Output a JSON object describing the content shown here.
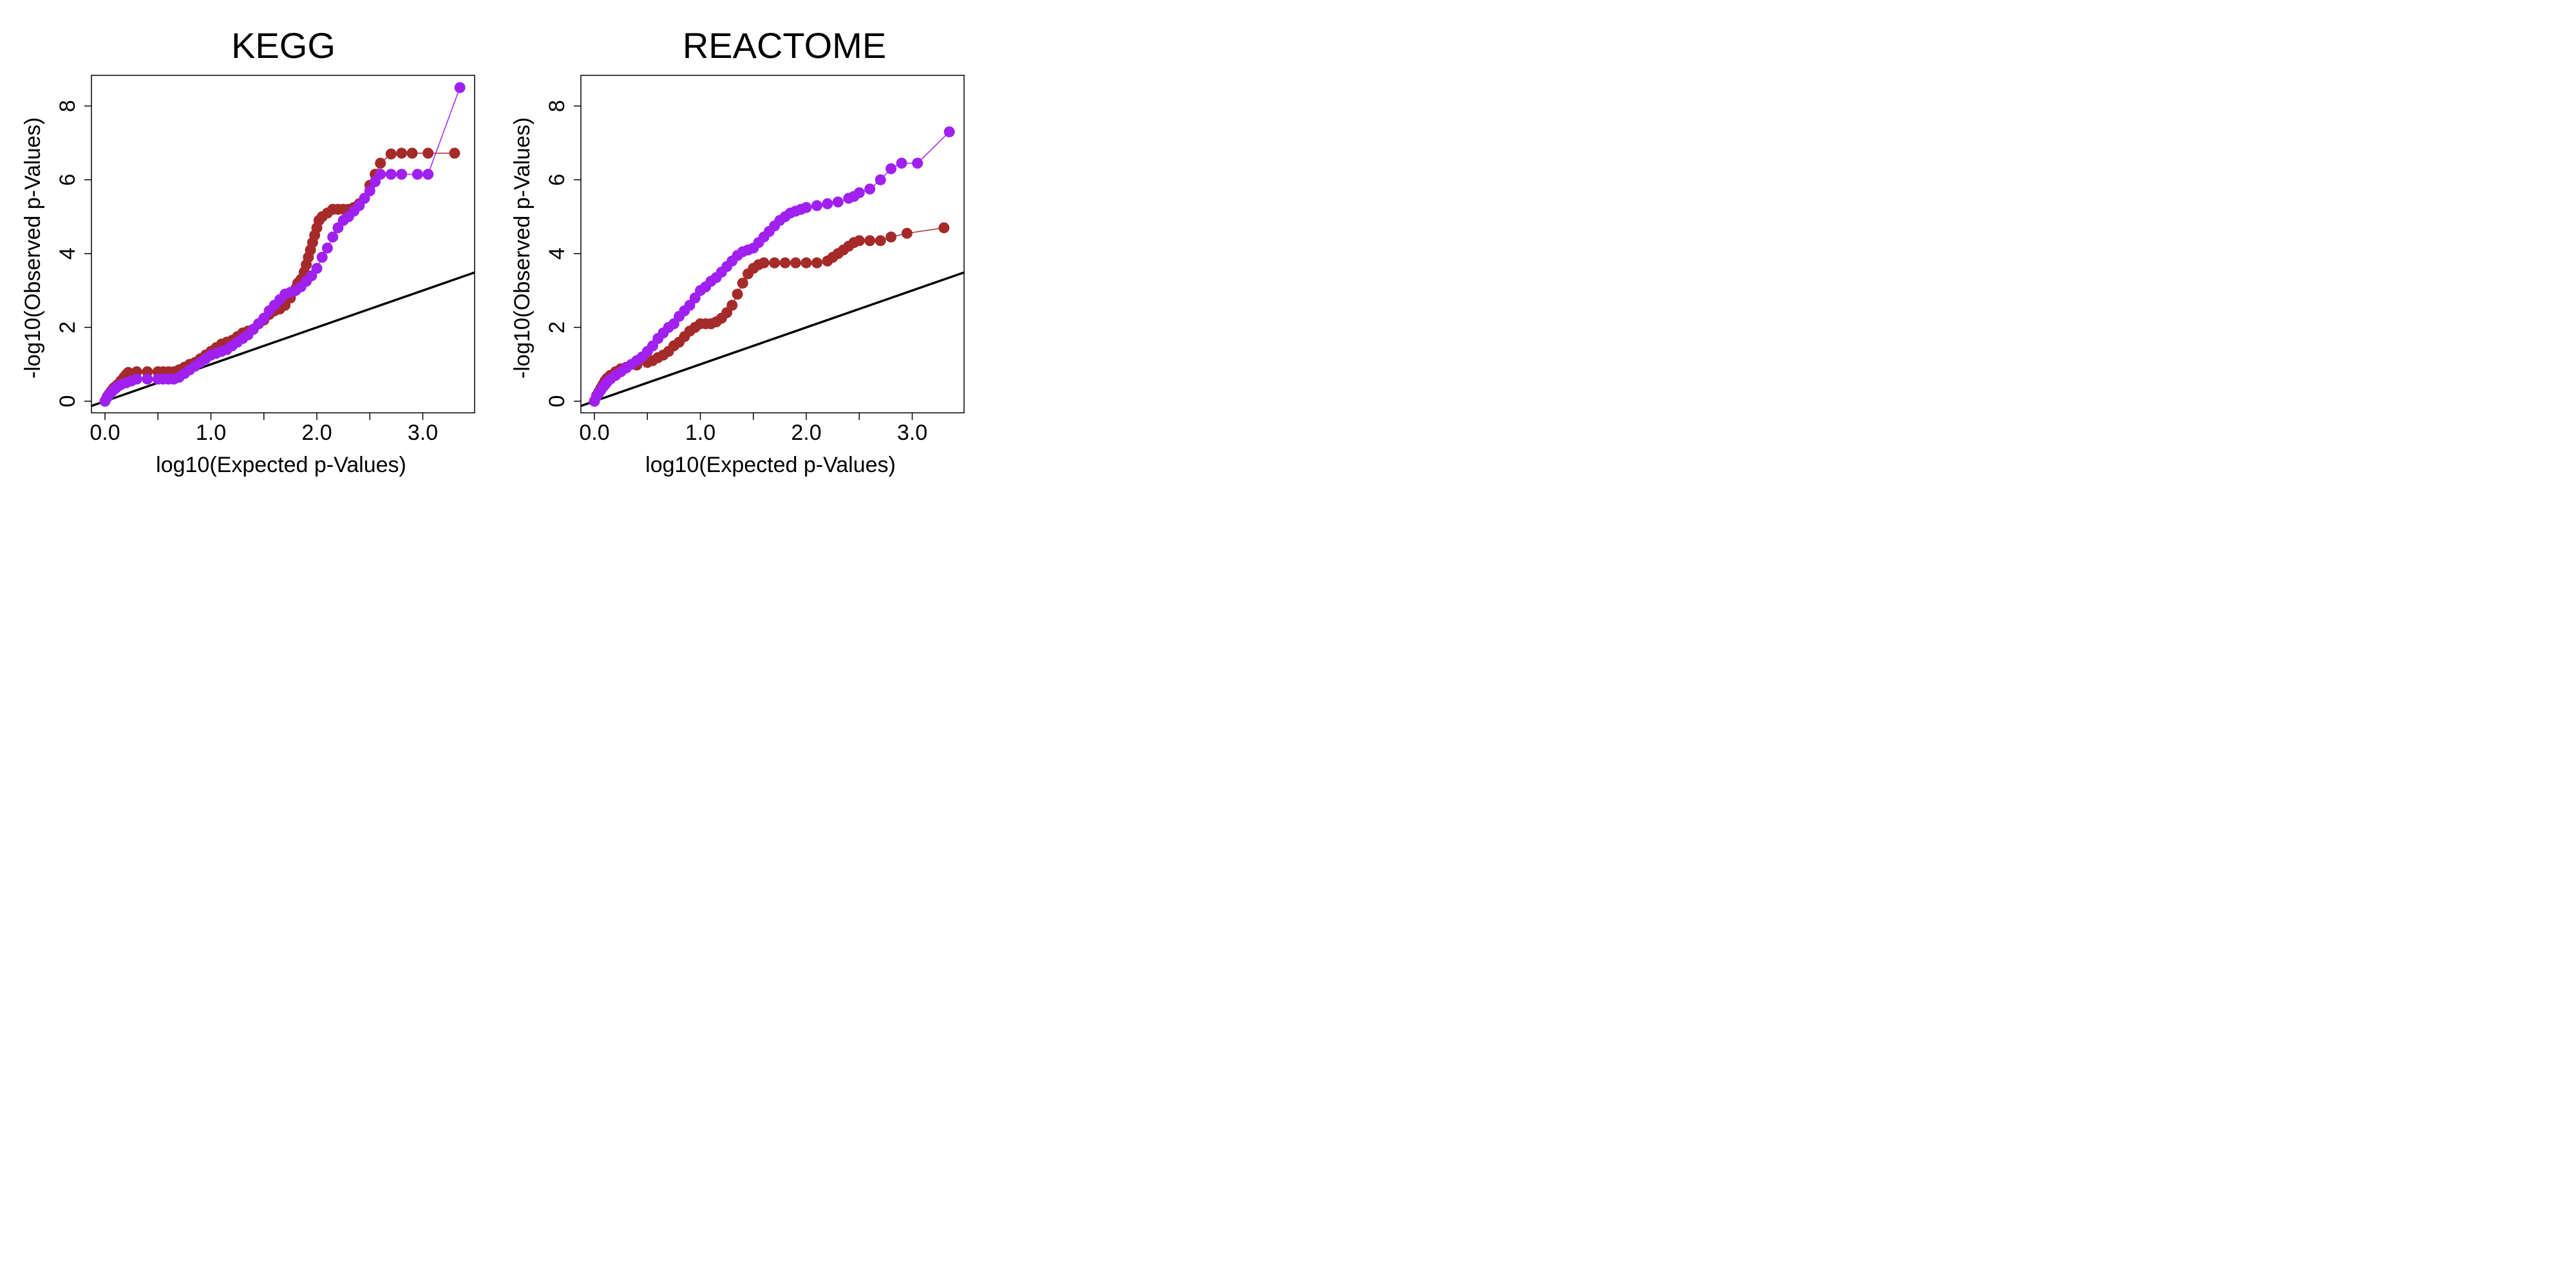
{
  "colors": {
    "series_a": "#a52a2a",
    "series_b": "#a020f0",
    "reference_line": "#000000",
    "background": "#ffffff"
  },
  "chart_data": [
    {
      "type": "scatter",
      "title": "KEGG",
      "xlabel": "log10(Expected p-Values)",
      "ylabel": "-log10(Observed p-Values)",
      "xlim": [
        0,
        3.5
      ],
      "ylim": [
        0,
        8.5
      ],
      "xticks": [
        "0.0",
        "1.0",
        "2.0",
        "3.0"
      ],
      "xticks_minor": [
        0.5,
        1.5,
        2.5
      ],
      "yticks": [
        "0",
        "2",
        "4",
        "6",
        "8"
      ],
      "reference_line": {
        "slope": 1,
        "intercept": 0
      },
      "legend": "none",
      "grid": false,
      "series": [
        {
          "color": "#a52a2a",
          "points": [
            [
              0.0,
              0.0
            ],
            [
              0.02,
              0.12
            ],
            [
              0.04,
              0.2
            ],
            [
              0.06,
              0.28
            ],
            [
              0.08,
              0.35
            ],
            [
              0.1,
              0.4
            ],
            [
              0.12,
              0.45
            ],
            [
              0.15,
              0.55
            ],
            [
              0.18,
              0.65
            ],
            [
              0.2,
              0.72
            ],
            [
              0.22,
              0.78
            ],
            [
              0.3,
              0.8
            ],
            [
              0.4,
              0.8
            ],
            [
              0.5,
              0.8
            ],
            [
              0.55,
              0.8
            ],
            [
              0.6,
              0.8
            ],
            [
              0.65,
              0.8
            ],
            [
              0.7,
              0.85
            ],
            [
              0.75,
              0.92
            ],
            [
              0.8,
              1.0
            ],
            [
              0.85,
              1.05
            ],
            [
              0.9,
              1.15
            ],
            [
              0.95,
              1.25
            ],
            [
              1.0,
              1.35
            ],
            [
              1.05,
              1.45
            ],
            [
              1.1,
              1.55
            ],
            [
              1.15,
              1.6
            ],
            [
              1.2,
              1.65
            ],
            [
              1.25,
              1.75
            ],
            [
              1.3,
              1.85
            ],
            [
              1.35,
              1.9
            ],
            [
              1.4,
              1.95
            ],
            [
              1.45,
              2.1
            ],
            [
              1.5,
              2.2
            ],
            [
              1.55,
              2.35
            ],
            [
              1.6,
              2.45
            ],
            [
              1.65,
              2.5
            ],
            [
              1.7,
              2.6
            ],
            [
              1.75,
              2.8
            ],
            [
              1.8,
              3.05
            ],
            [
              1.82,
              3.2
            ],
            [
              1.85,
              3.3
            ],
            [
              1.88,
              3.5
            ],
            [
              1.9,
              3.7
            ],
            [
              1.92,
              3.9
            ],
            [
              1.94,
              4.1
            ],
            [
              1.96,
              4.3
            ],
            [
              1.98,
              4.5
            ],
            [
              2.0,
              4.7
            ],
            [
              2.02,
              4.9
            ],
            [
              2.05,
              5.0
            ],
            [
              2.1,
              5.1
            ],
            [
              2.15,
              5.2
            ],
            [
              2.2,
              5.2
            ],
            [
              2.25,
              5.2
            ],
            [
              2.3,
              5.2
            ],
            [
              2.35,
              5.25
            ],
            [
              2.4,
              5.35
            ],
            [
              2.45,
              5.5
            ],
            [
              2.5,
              5.85
            ],
            [
              2.55,
              6.15
            ],
            [
              2.6,
              6.45
            ],
            [
              2.7,
              6.7
            ],
            [
              2.8,
              6.72
            ],
            [
              2.9,
              6.72
            ],
            [
              3.05,
              6.72
            ],
            [
              3.3,
              6.72
            ]
          ]
        },
        {
          "color": "#a020f0",
          "points": [
            [
              0.0,
              0.0
            ],
            [
              0.02,
              0.1
            ],
            [
              0.04,
              0.18
            ],
            [
              0.06,
              0.25
            ],
            [
              0.08,
              0.3
            ],
            [
              0.1,
              0.35
            ],
            [
              0.12,
              0.4
            ],
            [
              0.15,
              0.45
            ],
            [
              0.2,
              0.5
            ],
            [
              0.25,
              0.55
            ],
            [
              0.3,
              0.6
            ],
            [
              0.4,
              0.6
            ],
            [
              0.5,
              0.6
            ],
            [
              0.55,
              0.6
            ],
            [
              0.6,
              0.6
            ],
            [
              0.65,
              0.6
            ],
            [
              0.7,
              0.65
            ],
            [
              0.75,
              0.75
            ],
            [
              0.8,
              0.85
            ],
            [
              0.85,
              0.95
            ],
            [
              0.9,
              1.05
            ],
            [
              0.95,
              1.15
            ],
            [
              1.0,
              1.25
            ],
            [
              1.05,
              1.3
            ],
            [
              1.1,
              1.35
            ],
            [
              1.15,
              1.4
            ],
            [
              1.2,
              1.5
            ],
            [
              1.25,
              1.6
            ],
            [
              1.3,
              1.7
            ],
            [
              1.35,
              1.8
            ],
            [
              1.4,
              1.95
            ],
            [
              1.45,
              2.1
            ],
            [
              1.5,
              2.25
            ],
            [
              1.55,
              2.45
            ],
            [
              1.6,
              2.6
            ],
            [
              1.65,
              2.75
            ],
            [
              1.7,
              2.9
            ],
            [
              1.75,
              2.95
            ],
            [
              1.8,
              3.0
            ],
            [
              1.85,
              3.1
            ],
            [
              1.9,
              3.25
            ],
            [
              1.95,
              3.4
            ],
            [
              2.0,
              3.6
            ],
            [
              2.05,
              3.9
            ],
            [
              2.1,
              4.15
            ],
            [
              2.15,
              4.45
            ],
            [
              2.2,
              4.7
            ],
            [
              2.25,
              4.9
            ],
            [
              2.3,
              5.0
            ],
            [
              2.35,
              5.15
            ],
            [
              2.4,
              5.3
            ],
            [
              2.45,
              5.5
            ],
            [
              2.5,
              5.7
            ],
            [
              2.55,
              5.95
            ],
            [
              2.6,
              6.15
            ],
            [
              2.7,
              6.15
            ],
            [
              2.8,
              6.15
            ],
            [
              2.95,
              6.15
            ],
            [
              3.05,
              6.15
            ],
            [
              3.35,
              8.5
            ]
          ]
        }
      ]
    },
    {
      "type": "scatter",
      "title": "REACTOME",
      "xlabel": "log10(Expected p-Values)",
      "ylabel": "-log10(Observed p-Values)",
      "xlim": [
        0,
        3.5
      ],
      "ylim": [
        0,
        8.5
      ],
      "xticks": [
        "0.0",
        "1.0",
        "2.0",
        "3.0"
      ],
      "xticks_minor": [
        0.5,
        1.5,
        2.5
      ],
      "yticks": [
        "0",
        "2",
        "4",
        "6",
        "8"
      ],
      "reference_line": {
        "slope": 1,
        "intercept": 0
      },
      "legend": "none",
      "grid": false,
      "series": [
        {
          "color": "#a52a2a",
          "points": [
            [
              0.0,
              0.0
            ],
            [
              0.02,
              0.15
            ],
            [
              0.04,
              0.25
            ],
            [
              0.06,
              0.35
            ],
            [
              0.08,
              0.45
            ],
            [
              0.1,
              0.55
            ],
            [
              0.12,
              0.62
            ],
            [
              0.15,
              0.7
            ],
            [
              0.2,
              0.8
            ],
            [
              0.25,
              0.88
            ],
            [
              0.3,
              0.92
            ],
            [
              0.4,
              0.98
            ],
            [
              0.5,
              1.05
            ],
            [
              0.55,
              1.1
            ],
            [
              0.6,
              1.18
            ],
            [
              0.65,
              1.25
            ],
            [
              0.7,
              1.35
            ],
            [
              0.75,
              1.5
            ],
            [
              0.8,
              1.6
            ],
            [
              0.85,
              1.75
            ],
            [
              0.9,
              1.9
            ],
            [
              0.95,
              2.0
            ],
            [
              1.0,
              2.1
            ],
            [
              1.05,
              2.1
            ],
            [
              1.1,
              2.1
            ],
            [
              1.15,
              2.15
            ],
            [
              1.2,
              2.25
            ],
            [
              1.25,
              2.4
            ],
            [
              1.3,
              2.6
            ],
            [
              1.35,
              2.9
            ],
            [
              1.4,
              3.2
            ],
            [
              1.45,
              3.45
            ],
            [
              1.5,
              3.6
            ],
            [
              1.55,
              3.7
            ],
            [
              1.6,
              3.75
            ],
            [
              1.7,
              3.75
            ],
            [
              1.8,
              3.75
            ],
            [
              1.9,
              3.75
            ],
            [
              2.0,
              3.75
            ],
            [
              2.1,
              3.75
            ],
            [
              2.2,
              3.8
            ],
            [
              2.25,
              3.9
            ],
            [
              2.3,
              4.0
            ],
            [
              2.35,
              4.1
            ],
            [
              2.4,
              4.2
            ],
            [
              2.45,
              4.3
            ],
            [
              2.5,
              4.35
            ],
            [
              2.6,
              4.35
            ],
            [
              2.7,
              4.35
            ],
            [
              2.8,
              4.45
            ],
            [
              2.95,
              4.55
            ],
            [
              3.3,
              4.7
            ]
          ]
        },
        {
          "color": "#a020f0",
          "points": [
            [
              0.0,
              0.0
            ],
            [
              0.02,
              0.12
            ],
            [
              0.04,
              0.22
            ],
            [
              0.06,
              0.3
            ],
            [
              0.08,
              0.38
            ],
            [
              0.1,
              0.45
            ],
            [
              0.12,
              0.52
            ],
            [
              0.15,
              0.6
            ],
            [
              0.2,
              0.7
            ],
            [
              0.25,
              0.8
            ],
            [
              0.3,
              0.9
            ],
            [
              0.35,
              1.0
            ],
            [
              0.4,
              1.1
            ],
            [
              0.45,
              1.2
            ],
            [
              0.5,
              1.35
            ],
            [
              0.55,
              1.5
            ],
            [
              0.6,
              1.7
            ],
            [
              0.65,
              1.85
            ],
            [
              0.7,
              2.0
            ],
            [
              0.75,
              2.1
            ],
            [
              0.8,
              2.3
            ],
            [
              0.85,
              2.45
            ],
            [
              0.9,
              2.6
            ],
            [
              0.95,
              2.8
            ],
            [
              1.0,
              3.0
            ],
            [
              1.05,
              3.1
            ],
            [
              1.1,
              3.25
            ],
            [
              1.15,
              3.35
            ],
            [
              1.2,
              3.5
            ],
            [
              1.25,
              3.65
            ],
            [
              1.3,
              3.8
            ],
            [
              1.35,
              3.95
            ],
            [
              1.4,
              4.05
            ],
            [
              1.45,
              4.1
            ],
            [
              1.5,
              4.15
            ],
            [
              1.55,
              4.3
            ],
            [
              1.6,
              4.45
            ],
            [
              1.65,
              4.6
            ],
            [
              1.7,
              4.75
            ],
            [
              1.75,
              4.9
            ],
            [
              1.8,
              5.0
            ],
            [
              1.85,
              5.1
            ],
            [
              1.9,
              5.15
            ],
            [
              1.95,
              5.2
            ],
            [
              2.0,
              5.25
            ],
            [
              2.1,
              5.3
            ],
            [
              2.2,
              5.35
            ],
            [
              2.3,
              5.4
            ],
            [
              2.4,
              5.5
            ],
            [
              2.45,
              5.55
            ],
            [
              2.5,
              5.65
            ],
            [
              2.6,
              5.75
            ],
            [
              2.7,
              6.0
            ],
            [
              2.8,
              6.3
            ],
            [
              2.9,
              6.45
            ],
            [
              3.05,
              6.45
            ],
            [
              3.35,
              7.3
            ]
          ]
        }
      ]
    }
  ]
}
